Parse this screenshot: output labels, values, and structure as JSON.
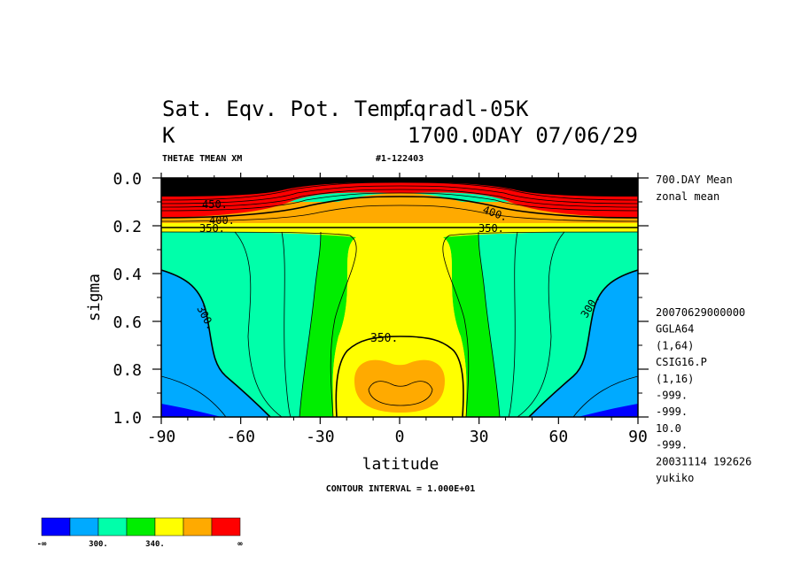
{
  "chart_data": {
    "type": "contour",
    "title_line1_left": "Sat. Eqv. Pot. Temp.",
    "title_line1_overlap": "fqradl-05K",
    "title_line2_left": "K",
    "title_line2_right": "1700.0DAY 07/06/29",
    "subtitle_left": "THETAE TMEAN XM",
    "subtitle_right": "#1-122403",
    "xlabel": "latitude",
    "ylabel": "sigma",
    "xlim": [
      -90,
      90
    ],
    "ylim": [
      0.0,
      1.0
    ],
    "xticks": [
      "-90",
      "-60",
      "-30",
      "0",
      "30",
      "60",
      "90"
    ],
    "yticks": [
      "0.0",
      "0.2",
      "0.4",
      "0.6",
      "0.8",
      "1.0"
    ],
    "contour_interval": "CONTOUR INTERVAL = 1.000E+01",
    "contour_labels": [
      "300.",
      "300.",
      "350.",
      "350.",
      "350.",
      "400.",
      "400.",
      "450."
    ],
    "info_top": [
      "700.DAY Mean",
      "zonal mean"
    ],
    "info_bottom": [
      "20070629000000",
      "GGLA64",
      "(1,64)",
      "CSIG16.P",
      "(1,16)",
      "-999.",
      "-999.",
      "10.0",
      "-999.",
      "20031114 192626",
      "yukiko"
    ],
    "colorbar": {
      "colors": [
        "#0000ff",
        "#00aaff",
        "#00ffaa",
        "#00ee00",
        "#ffff00",
        "#ffaa00",
        "#ff0000"
      ],
      "labels": [
        "-∞",
        "300.",
        "340.",
        "∞"
      ]
    }
  }
}
